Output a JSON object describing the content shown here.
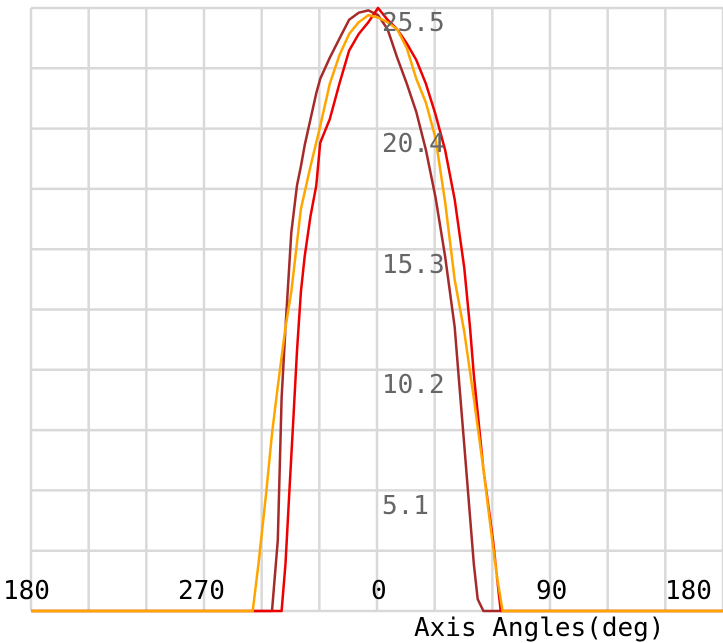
{
  "chart_data": {
    "type": "line",
    "xlabel": "Axis Angles(deg)",
    "ylabel": "",
    "x_tick_labels": [
      "180",
      "270",
      "0",
      "90",
      "180"
    ],
    "y_tick_labels": [
      "5.1",
      "10.2",
      "15.3",
      "20.4",
      "25.5"
    ],
    "xlim": [
      -180,
      180
    ],
    "ylim": [
      0,
      25.5
    ],
    "grid": true,
    "legend": "none",
    "series": [
      {
        "color": "#a52a2a",
        "x": [
          -180,
          -55,
          -52,
          -50,
          -48,
          -45,
          -42,
          -40,
          -38,
          -35,
          -32,
          -30,
          -25,
          -20,
          -15,
          -10,
          -5,
          0,
          5,
          10,
          15,
          20,
          25,
          30,
          35,
          40,
          42,
          45,
          48,
          50,
          52,
          55,
          180
        ],
        "y": [
          0,
          0,
          3,
          9,
          12,
          16,
          18,
          18.8,
          19.7,
          20.8,
          21.9,
          22.5,
          23.4,
          24.2,
          25,
          25.3,
          25.4,
          25.2,
          24.6,
          23.4,
          22.3,
          21.1,
          19.5,
          17.5,
          15,
          12,
          10,
          7,
          4,
          2,
          0.5,
          0,
          0
        ]
      },
      {
        "color": "#ee0000",
        "x": [
          -180,
          -50,
          -48,
          -46,
          -44,
          -42,
          -40,
          -38,
          -35,
          -32,
          -30,
          -25,
          -20,
          -15,
          -10,
          -5,
          0,
          5,
          10,
          15,
          20,
          25,
          30,
          35,
          40,
          45,
          48,
          50,
          55,
          60,
          62,
          64,
          180
        ],
        "y": [
          0,
          0,
          2,
          5,
          8,
          11,
          13.5,
          15,
          16.7,
          18,
          19.8,
          20.8,
          22.3,
          23.7,
          24.4,
          24.9,
          25.5,
          25,
          24.6,
          24,
          23.3,
          22.3,
          21,
          19.5,
          17.4,
          14.5,
          12,
          10,
          6,
          3,
          1.5,
          0,
          0
        ]
      },
      {
        "color": "#ffa500",
        "x": [
          -180,
          -65,
          -62,
          -58,
          -55,
          -52,
          -48,
          -45,
          -40,
          -35,
          -30,
          -25,
          -20,
          -15,
          -10,
          -5,
          0,
          5,
          10,
          15,
          20,
          25,
          30,
          35,
          40,
          45,
          50,
          55,
          58,
          62,
          65,
          180
        ],
        "y": [
          0,
          0,
          2,
          5,
          7.5,
          9.5,
          12,
          13.5,
          17,
          18.8,
          20.5,
          22.3,
          23.5,
          24.4,
          24.9,
          25.2,
          25.1,
          24.9,
          24.6,
          23.8,
          22.5,
          21.5,
          20,
          17.3,
          14,
          11.8,
          9,
          6,
          4,
          1.5,
          0,
          0
        ]
      }
    ]
  }
}
